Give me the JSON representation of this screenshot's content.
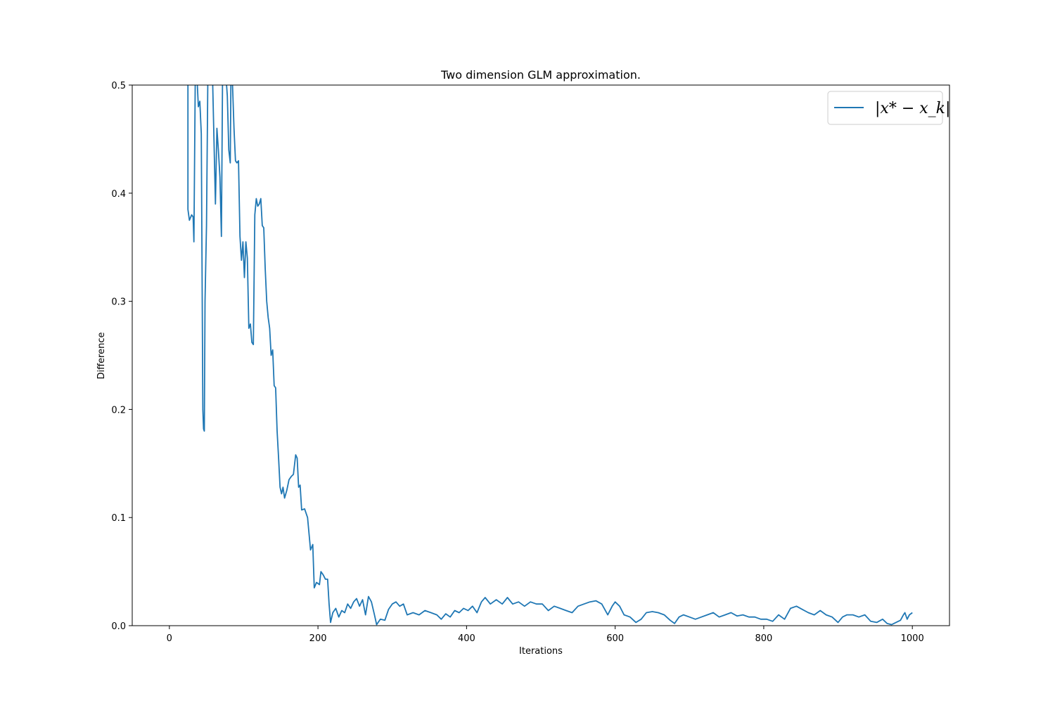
{
  "chart_data": {
    "type": "line",
    "title": "Two dimension GLM approximation.",
    "xlabel": "Iterations",
    "ylabel": "Difference",
    "xlim": [
      -50,
      1050
    ],
    "ylim": [
      0,
      0.5
    ],
    "xticks": [
      0,
      200,
      400,
      600,
      800,
      1000
    ],
    "xtick_labels": [
      "0",
      "200",
      "400",
      "600",
      "800",
      "1000"
    ],
    "yticks": [
      0.0,
      0.1,
      0.2,
      0.3,
      0.4,
      0.5
    ],
    "ytick_labels": [
      "0.0",
      "0.1",
      "0.2",
      "0.3",
      "0.4",
      "0.5"
    ],
    "grid": false,
    "legend_position": "top-right",
    "series": [
      {
        "name": "|x* − x_k|",
        "color": "#1f77b4",
        "points": [
          [
            25,
            0.55
          ],
          [
            25,
            0.385
          ],
          [
            27,
            0.375
          ],
          [
            30,
            0.38
          ],
          [
            32,
            0.378
          ],
          [
            33,
            0.355
          ],
          [
            35,
            0.52
          ],
          [
            37,
            0.51
          ],
          [
            39,
            0.48
          ],
          [
            41,
            0.485
          ],
          [
            43,
            0.455
          ],
          [
            45,
            0.2
          ],
          [
            46,
            0.182
          ],
          [
            47,
            0.18
          ],
          [
            48,
            0.3
          ],
          [
            50,
            0.37
          ],
          [
            52,
            0.52
          ],
          [
            55,
            0.55
          ],
          [
            58,
            0.51
          ],
          [
            60,
            0.45
          ],
          [
            62,
            0.39
          ],
          [
            64,
            0.46
          ],
          [
            66,
            0.44
          ],
          [
            68,
            0.415
          ],
          [
            70,
            0.36
          ],
          [
            72,
            0.55
          ],
          [
            75,
            0.52
          ],
          [
            78,
            0.49
          ],
          [
            80,
            0.44
          ],
          [
            82,
            0.428
          ],
          [
            83,
            0.52
          ],
          [
            85,
            0.5
          ],
          [
            87,
            0.46
          ],
          [
            89,
            0.43
          ],
          [
            91,
            0.428
          ],
          [
            93,
            0.43
          ],
          [
            95,
            0.36
          ],
          [
            97,
            0.338
          ],
          [
            99,
            0.355
          ],
          [
            101,
            0.322
          ],
          [
            103,
            0.355
          ],
          [
            105,
            0.34
          ],
          [
            107,
            0.275
          ],
          [
            109,
            0.279
          ],
          [
            111,
            0.262
          ],
          [
            113,
            0.26
          ],
          [
            115,
            0.38
          ],
          [
            117,
            0.395
          ],
          [
            119,
            0.388
          ],
          [
            121,
            0.39
          ],
          [
            123,
            0.395
          ],
          [
            125,
            0.37
          ],
          [
            127,
            0.368
          ],
          [
            129,
            0.33
          ],
          [
            131,
            0.3
          ],
          [
            133,
            0.285
          ],
          [
            135,
            0.275
          ],
          [
            137,
            0.25
          ],
          [
            139,
            0.255
          ],
          [
            141,
            0.222
          ],
          [
            143,
            0.22
          ],
          [
            145,
            0.18
          ],
          [
            147,
            0.155
          ],
          [
            149,
            0.128
          ],
          [
            151,
            0.122
          ],
          [
            153,
            0.128
          ],
          [
            155,
            0.118
          ],
          [
            158,
            0.125
          ],
          [
            161,
            0.135
          ],
          [
            164,
            0.138
          ],
          [
            167,
            0.14
          ],
          [
            170,
            0.158
          ],
          [
            172,
            0.155
          ],
          [
            174,
            0.128
          ],
          [
            176,
            0.13
          ],
          [
            178,
            0.107
          ],
          [
            182,
            0.108
          ],
          [
            186,
            0.1
          ],
          [
            190,
            0.07
          ],
          [
            193,
            0.075
          ],
          [
            195,
            0.035
          ],
          [
            198,
            0.04
          ],
          [
            202,
            0.038
          ],
          [
            204,
            0.05
          ],
          [
            207,
            0.047
          ],
          [
            210,
            0.043
          ],
          [
            213,
            0.043
          ],
          [
            215,
            0.02
          ],
          [
            217,
            0.003
          ],
          [
            220,
            0.012
          ],
          [
            224,
            0.016
          ],
          [
            228,
            0.008
          ],
          [
            232,
            0.014
          ],
          [
            236,
            0.012
          ],
          [
            240,
            0.02
          ],
          [
            244,
            0.016
          ],
          [
            248,
            0.022
          ],
          [
            252,
            0.025
          ],
          [
            256,
            0.018
          ],
          [
            260,
            0.024
          ],
          [
            264,
            0.01
          ],
          [
            268,
            0.027
          ],
          [
            272,
            0.022
          ],
          [
            276,
            0.01
          ],
          [
            279,
            0.001
          ],
          [
            284,
            0.006
          ],
          [
            290,
            0.005
          ],
          [
            295,
            0.015
          ],
          [
            300,
            0.02
          ],
          [
            305,
            0.022
          ],
          [
            310,
            0.018
          ],
          [
            315,
            0.02
          ],
          [
            320,
            0.01
          ],
          [
            328,
            0.012
          ],
          [
            336,
            0.01
          ],
          [
            344,
            0.014
          ],
          [
            352,
            0.012
          ],
          [
            360,
            0.01
          ],
          [
            366,
            0.006
          ],
          [
            372,
            0.011
          ],
          [
            378,
            0.008
          ],
          [
            384,
            0.014
          ],
          [
            390,
            0.012
          ],
          [
            396,
            0.016
          ],
          [
            402,
            0.014
          ],
          [
            408,
            0.018
          ],
          [
            414,
            0.012
          ],
          [
            420,
            0.022
          ],
          [
            425,
            0.026
          ],
          [
            432,
            0.02
          ],
          [
            440,
            0.024
          ],
          [
            448,
            0.02
          ],
          [
            455,
            0.026
          ],
          [
            462,
            0.02
          ],
          [
            470,
            0.022
          ],
          [
            478,
            0.018
          ],
          [
            486,
            0.022
          ],
          [
            494,
            0.02
          ],
          [
            502,
            0.02
          ],
          [
            510,
            0.014
          ],
          [
            518,
            0.018
          ],
          [
            526,
            0.016
          ],
          [
            534,
            0.014
          ],
          [
            542,
            0.012
          ],
          [
            550,
            0.018
          ],
          [
            558,
            0.02
          ],
          [
            566,
            0.022
          ],
          [
            574,
            0.023
          ],
          [
            582,
            0.02
          ],
          [
            590,
            0.01
          ],
          [
            596,
            0.018
          ],
          [
            600,
            0.022
          ],
          [
            606,
            0.018
          ],
          [
            612,
            0.01
          ],
          [
            620,
            0.008
          ],
          [
            628,
            0.003
          ],
          [
            635,
            0.006
          ],
          [
            642,
            0.012
          ],
          [
            650,
            0.013
          ],
          [
            658,
            0.012
          ],
          [
            666,
            0.01
          ],
          [
            674,
            0.005
          ],
          [
            680,
            0.002
          ],
          [
            686,
            0.008
          ],
          [
            692,
            0.01
          ],
          [
            700,
            0.008
          ],
          [
            708,
            0.006
          ],
          [
            716,
            0.008
          ],
          [
            724,
            0.01
          ],
          [
            732,
            0.012
          ],
          [
            740,
            0.008
          ],
          [
            748,
            0.01
          ],
          [
            756,
            0.012
          ],
          [
            764,
            0.009
          ],
          [
            772,
            0.01
          ],
          [
            780,
            0.008
          ],
          [
            788,
            0.008
          ],
          [
            796,
            0.006
          ],
          [
            804,
            0.006
          ],
          [
            812,
            0.004
          ],
          [
            820,
            0.01
          ],
          [
            828,
            0.006
          ],
          [
            836,
            0.016
          ],
          [
            844,
            0.018
          ],
          [
            852,
            0.015
          ],
          [
            860,
            0.012
          ],
          [
            868,
            0.01
          ],
          [
            876,
            0.014
          ],
          [
            884,
            0.01
          ],
          [
            892,
            0.008
          ],
          [
            900,
            0.003
          ],
          [
            906,
            0.008
          ],
          [
            912,
            0.01
          ],
          [
            920,
            0.01
          ],
          [
            928,
            0.008
          ],
          [
            936,
            0.01
          ],
          [
            944,
            0.004
          ],
          [
            952,
            0.003
          ],
          [
            960,
            0.006
          ],
          [
            966,
            0.002
          ],
          [
            972,
            0.001
          ],
          [
            978,
            0.003
          ],
          [
            984,
            0.005
          ],
          [
            988,
            0.01
          ],
          [
            990,
            0.012
          ],
          [
            993,
            0.006
          ],
          [
            996,
            0.01
          ],
          [
            1000,
            0.012
          ]
        ]
      }
    ]
  }
}
